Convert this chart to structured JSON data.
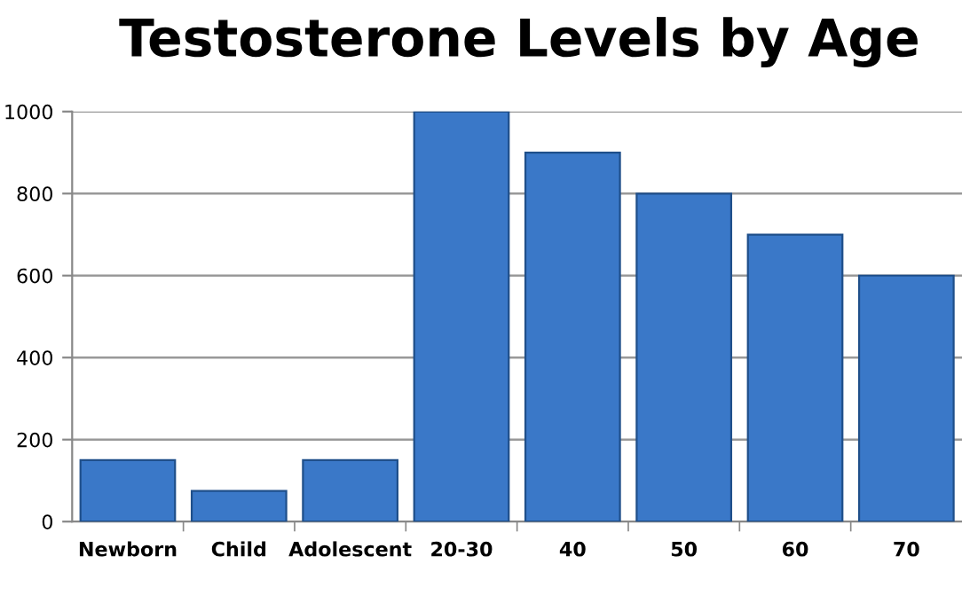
{
  "chart_data": {
    "type": "bar",
    "title": "Testosterone Levels by Age",
    "categories": [
      "Newborn",
      "Child",
      "Adolescent",
      "20-30",
      "40",
      "50",
      "60",
      "70"
    ],
    "values": [
      150,
      75,
      150,
      1000,
      900,
      800,
      700,
      600
    ],
    "color": "#3a78c8",
    "ylim": [
      0,
      1000
    ],
    "yticks": [
      0,
      200,
      400,
      600,
      800,
      1000
    ],
    "grid": "y",
    "legend": false
  }
}
